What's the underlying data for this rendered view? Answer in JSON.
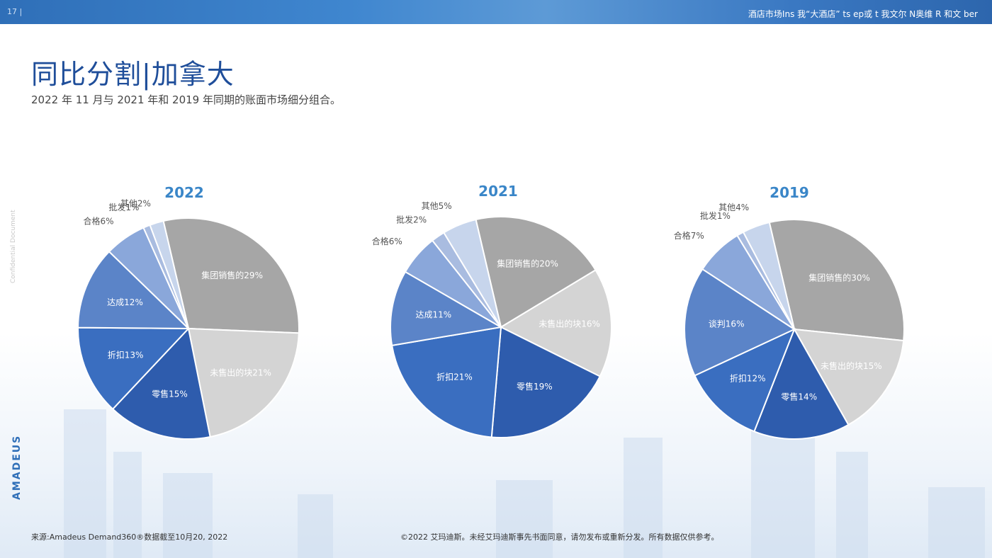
{
  "header": {
    "page_number": "17 |",
    "breadcrumb": "酒店市场Ins 我“大酒店” ts ep或 t 我文尔 N奥维 R 和文 ber"
  },
  "title": "同比分割|加拿大",
  "subtitle": "2022 年 11 月与 2021 年和 2019 年同期的账面市场细分组合。",
  "side_text": "Confidential Document",
  "logo": "AMADEUS",
  "footer": {
    "source": "来源:Amadeus Demand360®数据截至10月20, 2022",
    "copyright": "©2022 艾玛迪斯。未经艾玛迪斯事先书面同意，请勿发布或重新分发。所有数据仅供参考。"
  },
  "chart_data": [
    {
      "type": "pie",
      "title": "2022",
      "slices": [
        {
          "label": "集团销售的",
          "value": 29,
          "text": "29%",
          "color": "#a6a6a6"
        },
        {
          "label": "未售出的块",
          "value": 21,
          "text": "21%",
          "color": "#d4d4d4"
        },
        {
          "label": "零售",
          "value": 15,
          "text": "15%",
          "color": "#2e5cad"
        },
        {
          "label": "折扣",
          "value": 13,
          "text": "13%",
          "color": "#3a6ec0"
        },
        {
          "label": "达成",
          "value": 12,
          "text": "12%",
          "color": "#5b84c8"
        },
        {
          "label": "合格",
          "value": 6,
          "text": "6%",
          "color": "#8aa7da"
        },
        {
          "label": "批发",
          "value": 1,
          "text": "1%",
          "color": "#a9bce0"
        },
        {
          "label": "其他",
          "value": 2,
          "text": "2%",
          "color": "#c7d5ec"
        }
      ]
    },
    {
      "type": "pie",
      "title": "2021",
      "slices": [
        {
          "label": "集团销售的",
          "value": 20,
          "text": "20%",
          "color": "#a6a6a6"
        },
        {
          "label": "未售出的块",
          "value": 16,
          "text": "16%",
          "color": "#d4d4d4"
        },
        {
          "label": "零售",
          "value": 19,
          "text": "19%",
          "color": "#2e5cad"
        },
        {
          "label": "折扣",
          "value": 21,
          "text": "21%",
          "color": "#3a6ec0"
        },
        {
          "label": "达成",
          "value": 11,
          "text": "11%",
          "color": "#5b84c8"
        },
        {
          "label": "合格",
          "value": 6,
          "text": "6%",
          "color": "#8aa7da"
        },
        {
          "label": "批发",
          "value": 2,
          "text": "2%",
          "color": "#a9bce0"
        },
        {
          "label": "其他",
          "value": 5,
          "text": "5%",
          "color": "#c7d5ec"
        }
      ]
    },
    {
      "type": "pie",
      "title": "2019",
      "slices": [
        {
          "label": "集团销售的",
          "value": 30,
          "text": "30%",
          "color": "#a6a6a6"
        },
        {
          "label": "未售出的块",
          "value": 15,
          "text": "15%",
          "color": "#d4d4d4"
        },
        {
          "label": "零售",
          "value": 14,
          "text": "14%",
          "color": "#2e5cad"
        },
        {
          "label": "折扣",
          "value": 12,
          "text": "12%",
          "color": "#3a6ec0"
        },
        {
          "label": "谈判",
          "value": 16,
          "text": "16%",
          "color": "#5b84c8"
        },
        {
          "label": "合格",
          "value": 7,
          "text": "7%",
          "color": "#8aa7da"
        },
        {
          "label": "批发",
          "value": 1,
          "text": "1%",
          "color": "#a9bce0"
        },
        {
          "label": "其他",
          "value": 4,
          "text": "4%",
          "color": "#c7d5ec"
        }
      ]
    }
  ]
}
